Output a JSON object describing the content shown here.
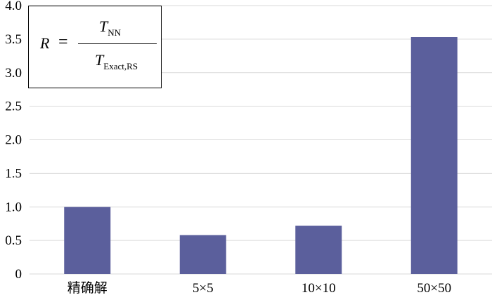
{
  "chart_data": {
    "type": "bar",
    "categories": [
      "精确解",
      "5×5",
      "10×10",
      "50×50"
    ],
    "values": [
      1.0,
      0.58,
      0.72,
      3.53
    ],
    "ylim": [
      0,
      4.0
    ],
    "yticks": [
      "0",
      "0.5",
      "1.0",
      "1.5",
      "2.0",
      "2.5",
      "3.0",
      "3.5",
      "4.0"
    ],
    "grid": true,
    "bar_color": "#5b5f9c",
    "grid_color": "#d9d9d9",
    "annotation": {
      "lhs": "R",
      "equals": "=",
      "numerator_main": "T",
      "numerator_sub": "NN",
      "denominator_main": "T",
      "denominator_sub": "Exact,RS"
    }
  }
}
